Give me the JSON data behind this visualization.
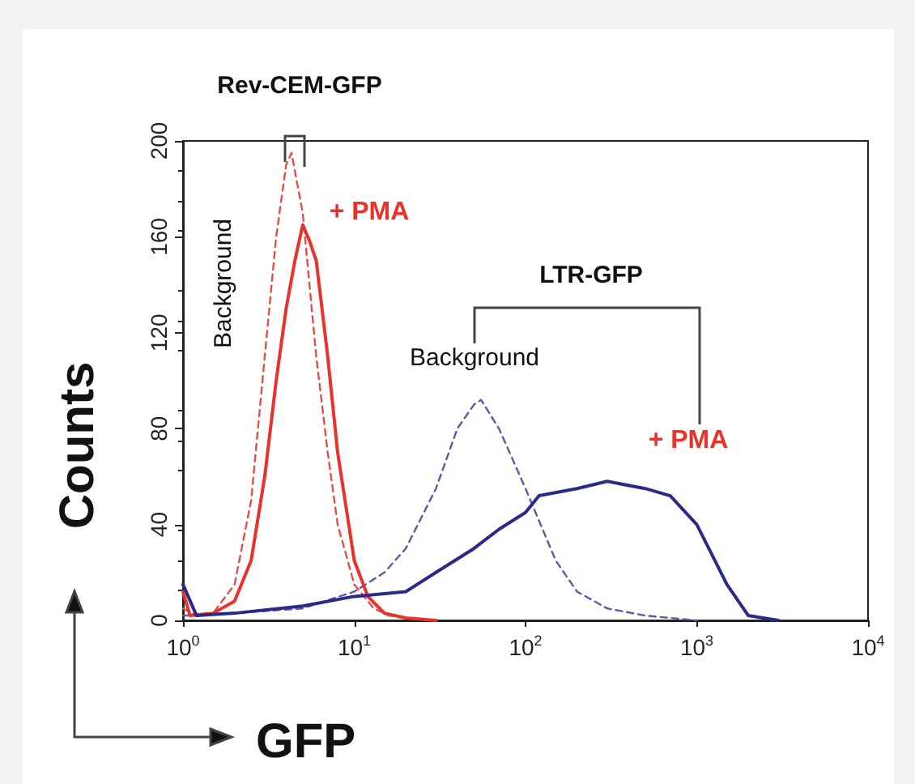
{
  "chart_data": {
    "type": "line",
    "xlabel": "GFP",
    "ylabel": "Counts",
    "log": "x",
    "grid": false,
    "marker": "none",
    "xlim": [
      1,
      10000
    ],
    "xticks": [
      {
        "value": 1,
        "label": "10$^{0}$"
      },
      {
        "value": 10,
        "label": "10$^{1}$"
      },
      {
        "value": 100,
        "label": "10$^{2}$"
      },
      {
        "value": 1000,
        "label": "10$^{3}$"
      },
      {
        "value": 10000,
        "label": "10$^{4}$"
      }
    ],
    "ylim": [
      0,
      200
    ],
    "yticks": [
      0,
      40,
      80,
      120,
      160,
      200
    ],
    "series": [
      {
        "color": "#e0504a",
        "line_style": "dashed",
        "x": [
          1,
          1.2,
          1.5,
          2,
          2.5,
          3,
          3.5,
          4,
          4.3,
          5,
          6,
          7,
          8,
          10,
          13,
          16,
          20,
          30
        ],
        "values": [
          5,
          2,
          3,
          15,
          50,
          110,
          160,
          190,
          195,
          170,
          110,
          70,
          40,
          15,
          5,
          2,
          1,
          0
        ]
      },
      {
        "color": "#e8322a",
        "line_style": "solid",
        "x": [
          1,
          1.1,
          1.5,
          2,
          2.5,
          3,
          3.5,
          4,
          4.5,
          5,
          5.5,
          6,
          7,
          8,
          10,
          12,
          15,
          20,
          30
        ],
        "values": [
          12,
          2,
          3,
          8,
          25,
          60,
          100,
          130,
          150,
          165,
          158,
          150,
          110,
          70,
          25,
          10,
          3,
          1,
          0
        ]
      },
      {
        "color": "#5a5aa8",
        "line_style": "dashed",
        "x": [
          1,
          2,
          5,
          10,
          15,
          20,
          30,
          40,
          50,
          55,
          70,
          100,
          150,
          200,
          300,
          500,
          1000
        ],
        "values": [
          2,
          3,
          5,
          12,
          20,
          30,
          55,
          80,
          90,
          92,
          80,
          55,
          25,
          12,
          5,
          2,
          0
        ]
      },
      {
        "color": "#2b2a8a",
        "line_style": "solid",
        "x": [
          1,
          1.2,
          2,
          5,
          10,
          20,
          30,
          50,
          70,
          100,
          120,
          200,
          300,
          500,
          700,
          1000,
          1500,
          2000,
          3000
        ],
        "values": [
          15,
          2,
          3,
          6,
          10,
          12,
          20,
          30,
          38,
          45,
          52,
          55,
          58,
          55,
          52,
          40,
          15,
          2,
          0
        ]
      }
    ],
    "annotations": [
      "Rev-CEM-GFP",
      "Background",
      "+ PMA",
      "LTR-GFP",
      "Background",
      "+ PMA"
    ]
  }
}
